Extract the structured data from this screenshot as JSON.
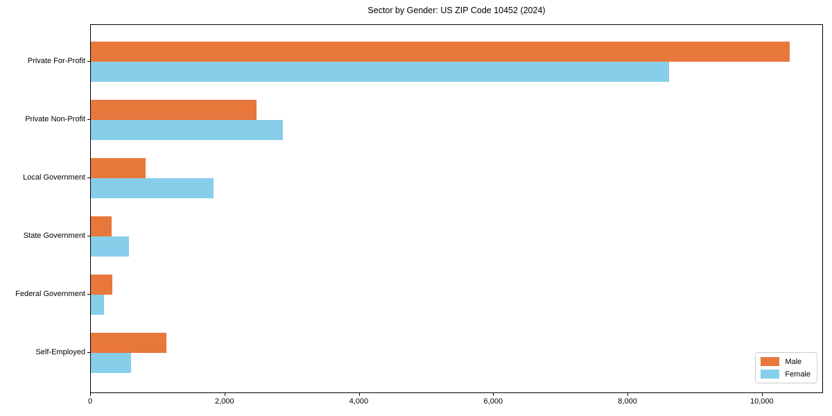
{
  "chart_data": {
    "type": "bar",
    "orientation": "horizontal",
    "title": "Sector by Gender: US ZIP Code 10452 (2024)",
    "categories": [
      "Private For-Profit",
      "Private Non-Profit",
      "Local Government",
      "State Government",
      "Federal Government",
      "Self-Employed"
    ],
    "series": [
      {
        "name": "Male",
        "color": "#e8773b",
        "values": [
          10400,
          2470,
          820,
          310,
          320,
          1120
        ]
      },
      {
        "name": "Female",
        "color": "#87ceeb",
        "values": [
          8610,
          2860,
          1830,
          570,
          200,
          600
        ]
      }
    ],
    "xlabel": "",
    "ylabel": "",
    "xlim": [
      0,
      10910
    ],
    "xticks": [
      {
        "value": 0,
        "label": "0"
      },
      {
        "value": 2000,
        "label": "2,000"
      },
      {
        "value": 4000,
        "label": "4,000"
      },
      {
        "value": 6000,
        "label": "6,000"
      },
      {
        "value": 8000,
        "label": "8,000"
      },
      {
        "value": 10000,
        "label": "10,000"
      }
    ],
    "grid": "off",
    "legend_position": "lower right",
    "legend": {
      "entries": [
        {
          "label": "Male",
          "color": "#e8773b"
        },
        {
          "label": "Female",
          "color": "#87ceeb"
        }
      ]
    }
  }
}
